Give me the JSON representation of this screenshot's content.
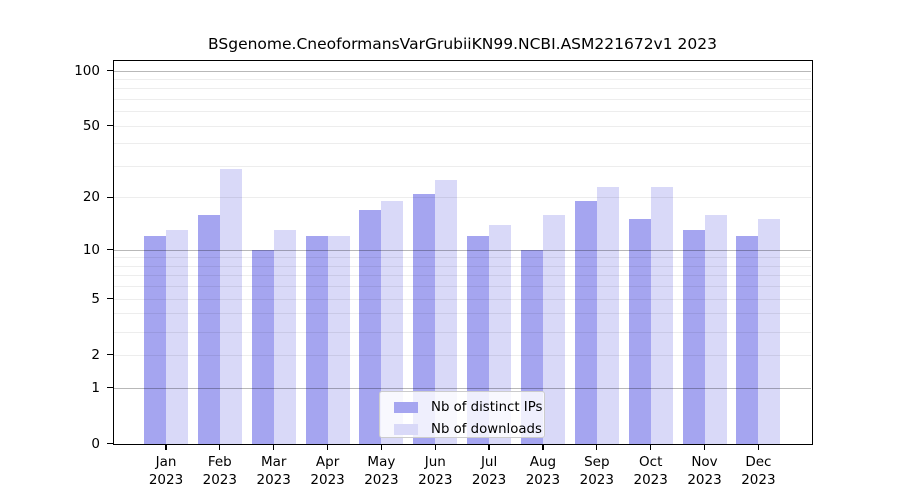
{
  "title": "BSgenome.CneoformansVarGrubiiKN99.NCBI.ASM221672v1 2023",
  "chart_data": {
    "type": "bar",
    "categories": [
      "Jan",
      "Feb",
      "Mar",
      "Apr",
      "May",
      "Jun",
      "Jul",
      "Aug",
      "Sep",
      "Oct",
      "Nov",
      "Dec"
    ],
    "year_label": "2023",
    "series": [
      {
        "name": "Nb of distinct IPs",
        "color": "#a5a5f0",
        "values": [
          12,
          16,
          10,
          12,
          17,
          21,
          12,
          10,
          19,
          15,
          13,
          12
        ]
      },
      {
        "name": "Nb of downloads",
        "color": "#d9d9f8",
        "values": [
          13,
          29,
          13,
          12,
          19,
          25,
          14,
          16,
          23,
          23,
          16,
          15
        ]
      }
    ],
    "title": "BSgenome.CneoformansVarGrubiiKN99.NCBI.ASM221672v1 2023",
    "xlabel": "",
    "ylabel": "",
    "yscale": "log1p",
    "ylim": [
      0,
      112.6
    ],
    "yticks": [
      0,
      1,
      2,
      5,
      10,
      20,
      50,
      100
    ],
    "gridlines_decade": [
      1,
      10,
      100
    ],
    "gridlines_minor": [
      2,
      3,
      4,
      5,
      6,
      7,
      8,
      9,
      20,
      30,
      40,
      50,
      60,
      70,
      80,
      90
    ],
    "grid": "on",
    "legend_position": "bottom-center",
    "legend": [
      "Nb of distinct IPs",
      "Nb of downloads"
    ]
  }
}
